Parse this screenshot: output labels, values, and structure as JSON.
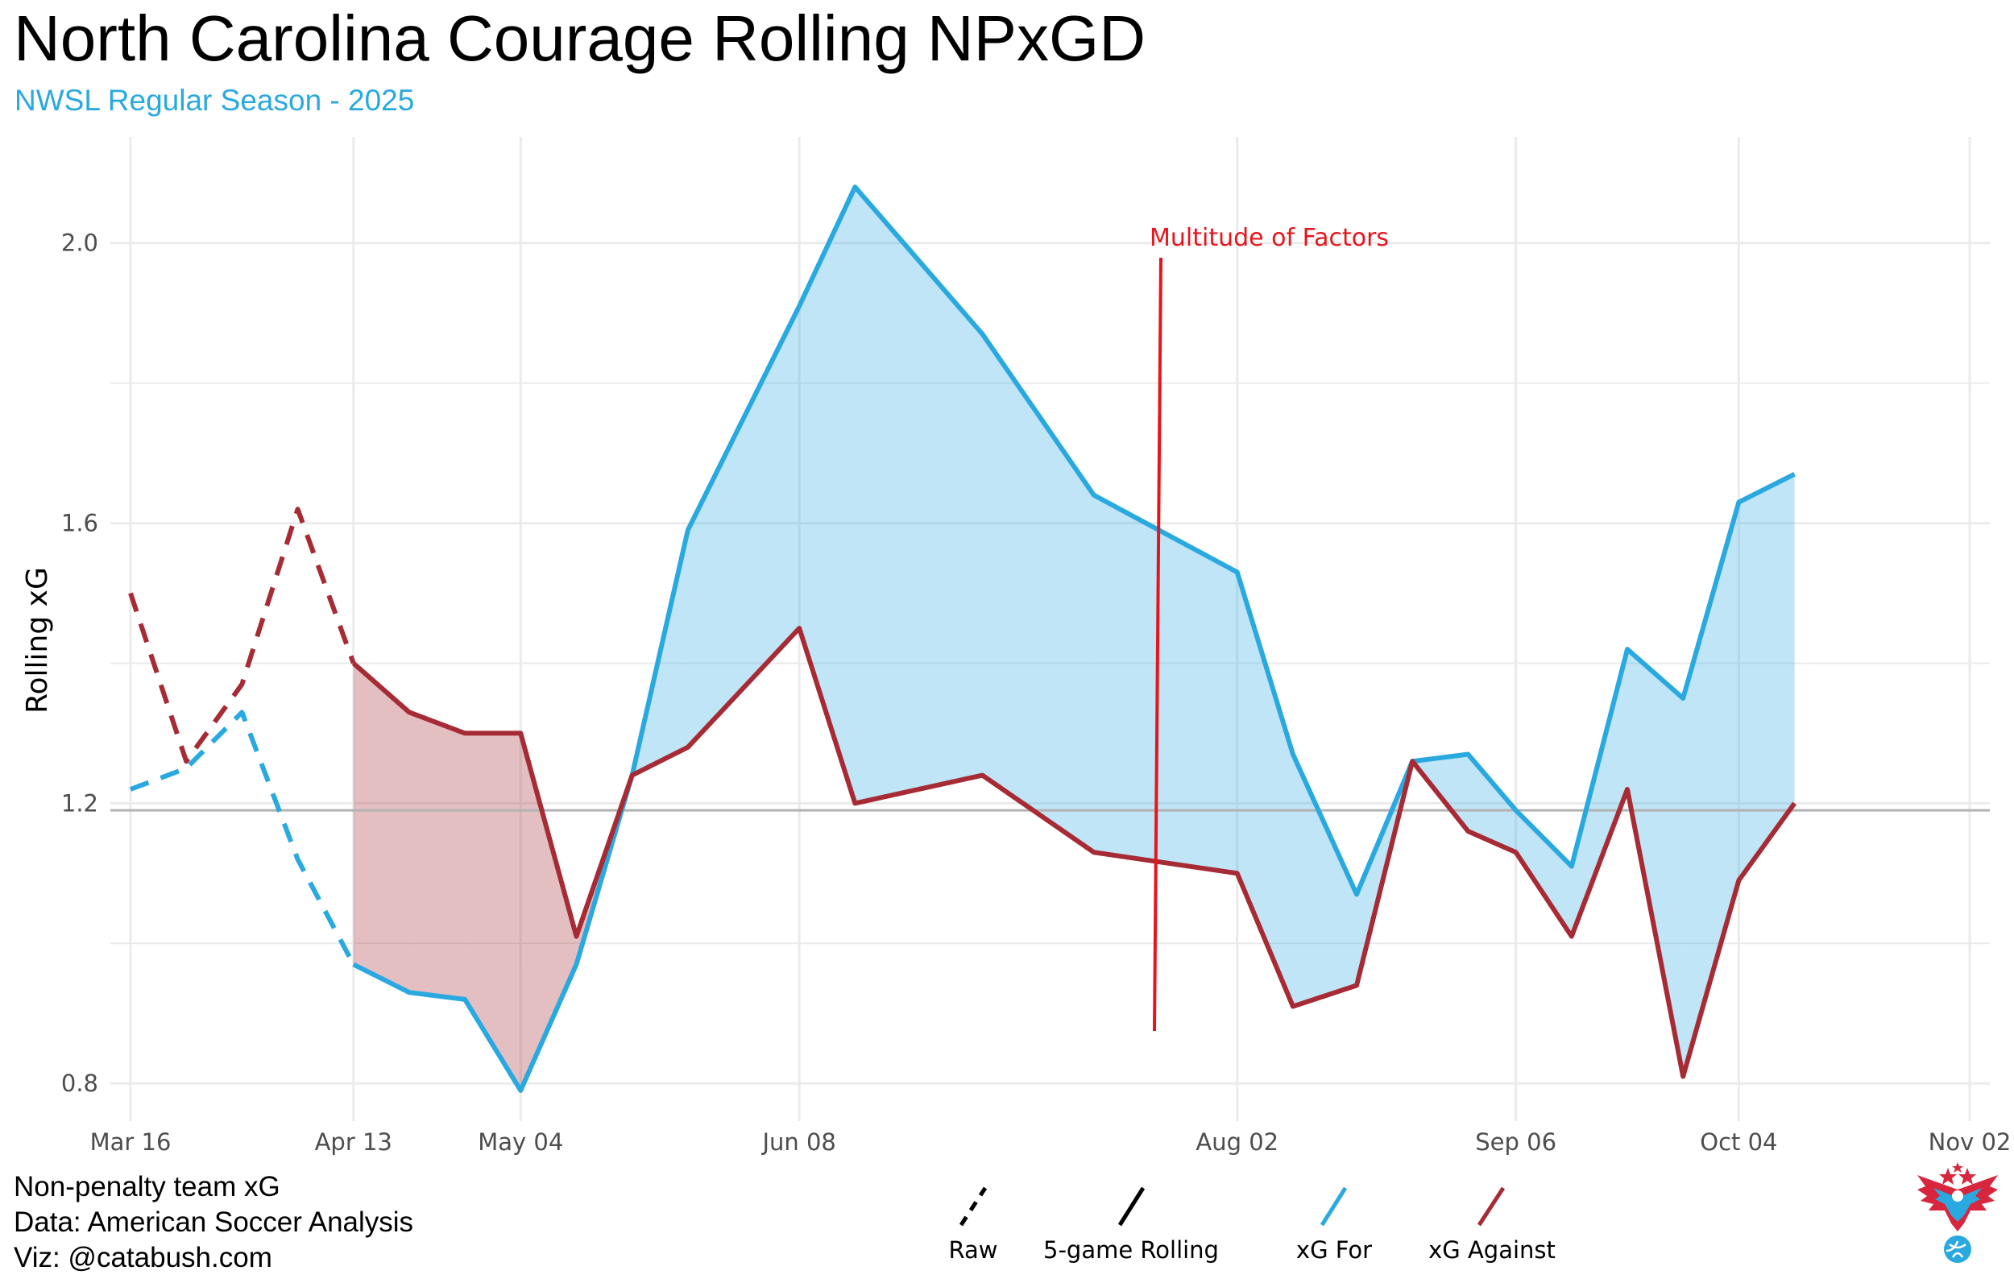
{
  "chart_data": {
    "type": "line",
    "title": "North Carolina Courage Rolling NPxGD",
    "subtitle": "NWSL Regular Season - 2025",
    "ylabel": "Rolling xG",
    "xlabel": "",
    "ylim": [
      0.76,
      2.14
    ],
    "yticks": [
      0.8,
      1.2,
      1.6,
      2.0
    ],
    "ytick_labels": [
      "0.8",
      "1.2",
      "1.6",
      "2.0"
    ],
    "xlim": [
      "2025-03-16",
      "2025-11-02"
    ],
    "xticks": [
      "2025-03-16",
      "2025-04-13",
      "2025-05-04",
      "2025-06-08",
      "2025-08-02",
      "2025-09-06",
      "2025-10-04",
      "2025-11-02"
    ],
    "xtick_labels": [
      "Mar 16",
      "Apr 13",
      "May 04",
      "Jun 08",
      "Aug 02",
      "Sep 06",
      "Oct 04",
      "Nov 02"
    ],
    "grid": true,
    "reference_line": 1.19,
    "series": [
      {
        "name": "xG For",
        "color": "#2AA9E0",
        "x": [
          "2025-03-16",
          "2025-03-23",
          "2025-03-30",
          "2025-04-06",
          "2025-04-13",
          "2025-04-20",
          "2025-04-27",
          "2025-05-04",
          "2025-05-11",
          "2025-05-18",
          "2025-05-25",
          "2025-06-08",
          "2025-06-15",
          "2025-07-01",
          "2025-07-15",
          "2025-08-02",
          "2025-08-09",
          "2025-08-17",
          "2025-08-24",
          "2025-08-31",
          "2025-09-06",
          "2025-09-13",
          "2025-09-20",
          "2025-09-27",
          "2025-10-04",
          "2025-10-11",
          "2025-10-18",
          "2025-11-02"
        ],
        "raw": [
          1.22,
          1.25,
          1.33,
          1.12,
          0.97,
          null,
          null,
          null,
          null,
          null,
          null,
          null,
          null,
          null,
          null,
          null,
          null,
          null,
          null,
          null,
          null,
          null,
          null,
          null,
          null,
          null,
          null,
          null
        ],
        "rolling": [
          null,
          null,
          null,
          null,
          0.97,
          0.93,
          0.92,
          0.79,
          0.97,
          1.24,
          1.59,
          1.91,
          2.08,
          1.87,
          1.64,
          1.53,
          1.27,
          1.07,
          1.26,
          1.27,
          1.19,
          1.11,
          1.42,
          1.35,
          1.63,
          1.67,
          null,
          null
        ]
      },
      {
        "name": "xG Against",
        "color": "#A62B35",
        "x": [
          "2025-03-16",
          "2025-03-23",
          "2025-03-30",
          "2025-04-06",
          "2025-04-13",
          "2025-04-20",
          "2025-04-27",
          "2025-05-04",
          "2025-05-11",
          "2025-05-18",
          "2025-05-25",
          "2025-06-08",
          "2025-06-15",
          "2025-07-01",
          "2025-07-15",
          "2025-08-02",
          "2025-08-09",
          "2025-08-17",
          "2025-08-24",
          "2025-08-31",
          "2025-09-06",
          "2025-09-13",
          "2025-09-20",
          "2025-09-27",
          "2025-10-04",
          "2025-10-11",
          "2025-10-18",
          "2025-11-02"
        ],
        "raw": [
          1.5,
          1.26,
          1.37,
          1.62,
          1.4,
          null,
          null,
          null,
          null,
          null,
          null,
          null,
          null,
          null,
          null,
          null,
          null,
          null,
          null,
          null,
          null,
          null,
          null,
          null,
          null,
          null,
          null,
          null
        ],
        "rolling": [
          null,
          null,
          null,
          null,
          1.4,
          1.33,
          1.3,
          1.3,
          1.01,
          1.24,
          1.28,
          1.45,
          1.2,
          1.24,
          1.13,
          1.1,
          0.91,
          0.94,
          1.26,
          1.16,
          1.13,
          1.01,
          1.22,
          0.81,
          1.09,
          1.2,
          null,
          null
        ]
      }
    ],
    "annotation": {
      "text": "Multitude of Factors",
      "color": "#E8141C"
    },
    "legend": {
      "position": "bottom",
      "linetype_items": [
        "Raw",
        "5-game Rolling"
      ],
      "color_items": [
        "xG For",
        "xG Against"
      ]
    },
    "caption": [
      "Non-penalty team xG",
      "Data: American Soccer Analysis",
      "Viz: @catabush.com"
    ],
    "logo_icon": "eagle-soccer-logo-icon"
  }
}
